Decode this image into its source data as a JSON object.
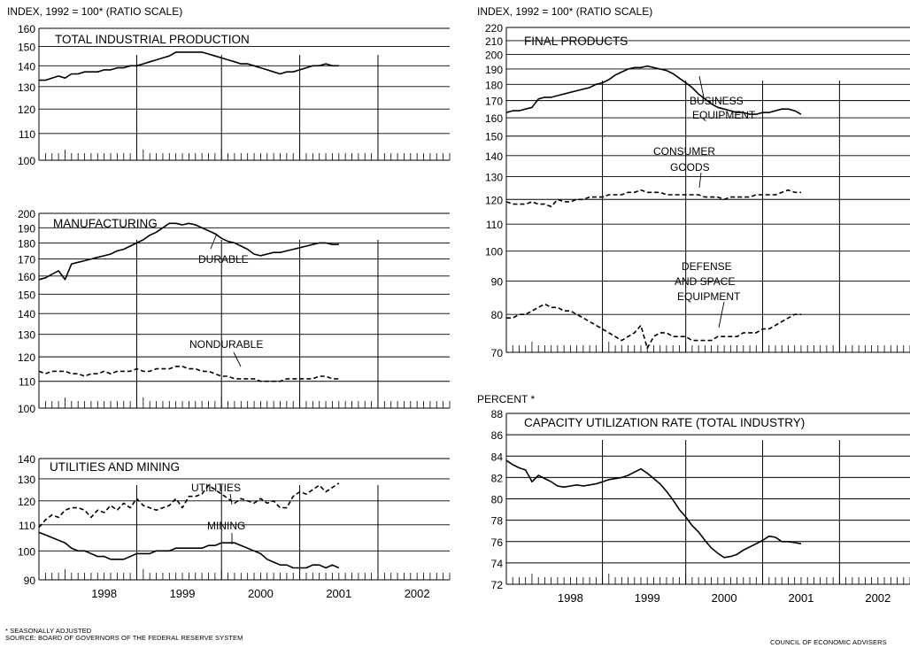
{
  "notes": {
    "seasonal": "* SEASONALLY ADJUSTED",
    "source": "SOURCE: BOARD OF GOVERNORS OF THE FEDERAL RESERVE SYSTEM",
    "credit": "COUNCIL OF ECONOMIC ADVISERS"
  },
  "chart_data": [
    {
      "id": "tip",
      "type": "line",
      "unit_label": "INDEX, 1992 = 100* (RATIO SCALE)",
      "title": "TOTAL INDUSTRIAL PRODUCTION",
      "scale": "log",
      "ylim": [
        100,
        160
      ],
      "yticks": [
        100,
        110,
        120,
        130,
        140,
        150,
        160
      ],
      "x_years": [
        "1998",
        "1999",
        "2000",
        "2001",
        "2002"
      ],
      "x_labels_shown": false,
      "annotations": [],
      "series": [
        {
          "name": "",
          "dashed": false,
          "start": "1997-09",
          "values": [
            133,
            133,
            134,
            135,
            134,
            136,
            136,
            137,
            137,
            137,
            138,
            138,
            139,
            139,
            140,
            140,
            141,
            142,
            143,
            144,
            145,
            147,
            147,
            147,
            147,
            147,
            146,
            145,
            144,
            143,
            142,
            141,
            141,
            140,
            139,
            138,
            137,
            136,
            137,
            137,
            138,
            139,
            140,
            140,
            141,
            140,
            140
          ]
        }
      ]
    },
    {
      "id": "mfg",
      "type": "line",
      "unit_label": "",
      "title": "MANUFACTURING",
      "scale": "log",
      "ylim": [
        100,
        200
      ],
      "yticks": [
        100,
        110,
        120,
        130,
        140,
        150,
        160,
        170,
        180,
        190,
        200
      ],
      "x_years": [
        "1998",
        "1999",
        "2000",
        "2001",
        "2002"
      ],
      "x_labels_shown": false,
      "annotations": [
        {
          "text": "DURABLE",
          "series": 0
        },
        {
          "text": "NONDURABLE",
          "series": 1
        }
      ],
      "series": [
        {
          "name": "",
          "dashed": false,
          "start": "1997-09",
          "values": [
            158,
            159,
            161,
            163,
            158,
            167,
            168,
            169,
            170,
            171,
            172,
            173,
            175,
            176,
            178,
            180,
            182,
            185,
            187,
            190,
            193,
            193,
            192,
            193,
            192,
            190,
            188,
            186,
            183,
            181,
            180,
            178,
            176,
            173,
            172,
            173,
            174,
            174,
            175,
            176,
            177,
            178,
            179,
            180,
            180,
            179,
            179
          ]
        },
        {
          "name": "",
          "dashed": true,
          "start": "1997-09",
          "values": [
            114,
            113,
            114,
            114,
            114,
            113,
            113,
            112,
            113,
            113,
            114,
            113,
            114,
            114,
            114,
            115,
            114,
            114,
            115,
            115,
            115,
            116,
            116,
            115,
            115,
            114,
            114,
            113,
            112,
            112,
            111,
            111,
            111,
            111,
            110,
            110,
            110,
            110,
            111,
            111,
            111,
            111,
            111,
            112,
            112,
            111,
            111
          ]
        }
      ]
    },
    {
      "id": "util",
      "type": "line",
      "unit_label": "",
      "title": "UTILITIES AND MINING",
      "scale": "log",
      "ylim": [
        90,
        140
      ],
      "yticks": [
        90,
        100,
        110,
        120,
        130,
        140
      ],
      "x_years": [
        "1998",
        "1999",
        "2000",
        "2001",
        "2002"
      ],
      "x_labels_shown": true,
      "annotations": [
        {
          "text": "UTILITIES",
          "series": 0
        },
        {
          "text": "MINING",
          "series": 1
        }
      ],
      "series": [
        {
          "name": "",
          "dashed": true,
          "start": "1997-09",
          "values": [
            109,
            112,
            114,
            113,
            116,
            117,
            117,
            116,
            113,
            116,
            115,
            118,
            116,
            119,
            117,
            121,
            118,
            117,
            116,
            117,
            118,
            121,
            117,
            122,
            122,
            123,
            127,
            125,
            123,
            121,
            119,
            121,
            120,
            119,
            121,
            119,
            120,
            117,
            117,
            122,
            124,
            123,
            125,
            127,
            124,
            126,
            128
          ]
        },
        {
          "name": "",
          "dashed": false,
          "start": "1997-09",
          "values": [
            107,
            106,
            105,
            104,
            103,
            101,
            100,
            100,
            99,
            98,
            98,
            97,
            97,
            97,
            98,
            99,
            99,
            99,
            100,
            100,
            100,
            101,
            101,
            101,
            101,
            101,
            102,
            102,
            103,
            103,
            103,
            102,
            101,
            100,
            99,
            97,
            96,
            95,
            95,
            94,
            94,
            94,
            95,
            95,
            94,
            95,
            94
          ]
        }
      ]
    },
    {
      "id": "final",
      "type": "line",
      "unit_label": "INDEX, 1992 = 100* (RATIO SCALE)",
      "title": "FINAL PRODUCTS",
      "scale": "log",
      "ylim": [
        70,
        220
      ],
      "yticks": [
        70,
        80,
        90,
        100,
        110,
        120,
        130,
        140,
        150,
        160,
        170,
        180,
        190,
        200,
        210,
        220
      ],
      "x_years": [
        "1998",
        "1999",
        "2000",
        "2001",
        "2002"
      ],
      "x_labels_shown": false,
      "annotations": [
        {
          "text": "BUSINESS",
          "series": 0,
          "line": 0
        },
        {
          "text": "EQUIPMENT",
          "series": 0,
          "line": 1
        },
        {
          "text": "CONSUMER",
          "series": 1,
          "line": 0
        },
        {
          "text": "GOODS",
          "series": 1,
          "line": 1
        },
        {
          "text": "DEFENSE",
          "series": 2,
          "line": 0
        },
        {
          "text": "AND SPACE",
          "series": 2,
          "line": 1
        },
        {
          "text": "EQUIPMENT",
          "series": 2,
          "line": 2
        }
      ],
      "series": [
        {
          "name": "",
          "dashed": false,
          "start": "1997-09",
          "values": [
            163,
            164,
            164,
            165,
            166,
            171,
            172,
            172,
            173,
            174,
            175,
            176,
            177,
            178,
            180,
            181,
            183,
            186,
            188,
            190,
            191,
            191,
            192,
            191,
            190,
            189,
            187,
            184,
            181,
            178,
            174,
            171,
            168,
            166,
            165,
            164,
            163,
            163,
            162,
            162,
            163,
            163,
            164,
            165,
            165,
            164,
            162
          ]
        },
        {
          "name": "",
          "dashed": true,
          "start": "1997-09",
          "values": [
            119,
            118,
            118,
            118,
            119,
            118,
            118,
            117,
            120,
            119,
            119,
            120,
            120,
            121,
            121,
            121,
            122,
            122,
            122,
            123,
            123,
            124,
            123,
            123,
            123,
            122,
            122,
            122,
            122,
            122,
            122,
            121,
            121,
            121,
            120,
            121,
            121,
            121,
            121,
            122,
            122,
            122,
            122,
            123,
            124,
            123,
            123
          ]
        },
        {
          "name": "",
          "dashed": true,
          "start": "1997-09",
          "values": [
            79,
            79,
            80,
            80,
            81,
            82,
            83,
            82,
            82,
            81,
            81,
            80,
            79,
            78,
            77,
            76,
            75,
            74,
            73,
            74,
            75,
            77,
            71,
            74,
            75,
            75,
            74,
            74,
            74,
            73,
            73,
            73,
            73,
            74,
            74,
            74,
            74,
            75,
            75,
            75,
            76,
            76,
            77,
            78,
            79,
            80,
            80
          ]
        }
      ]
    },
    {
      "id": "cap",
      "type": "line",
      "unit_label": "PERCENT *",
      "title": "CAPACITY UTILIZATION RATE (TOTAL INDUSTRY)",
      "scale": "linear",
      "ylim": [
        72,
        88
      ],
      "yticks": [
        72,
        74,
        76,
        78,
        80,
        82,
        84,
        86,
        88
      ],
      "x_years": [
        "1998",
        "1999",
        "2000",
        "2001",
        "2002"
      ],
      "x_labels_shown": true,
      "annotations": [],
      "series": [
        {
          "name": "",
          "dashed": false,
          "start": "1997-09",
          "values": [
            83.6,
            83.2,
            82.9,
            82.7,
            81.6,
            82.2,
            81.9,
            81.6,
            81.2,
            81.1,
            81.2,
            81.3,
            81.2,
            81.3,
            81.4,
            81.6,
            81.8,
            81.9,
            82.0,
            82.2,
            82.5,
            82.8,
            82.4,
            81.9,
            81.4,
            80.7,
            79.9,
            79.0,
            78.3,
            77.5,
            76.9,
            76.1,
            75.4,
            74.9,
            74.5,
            74.6,
            74.8,
            75.2,
            75.5,
            75.8,
            76.1,
            76.5,
            76.4,
            76.0,
            76.0,
            75.9,
            75.8
          ]
        }
      ]
    }
  ]
}
